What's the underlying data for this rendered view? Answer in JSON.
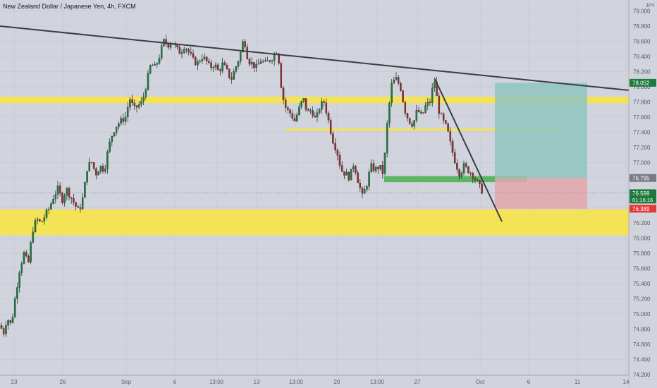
{
  "header": {
    "title": "New Zealand Dollar / Japanese Yen, 4h, FXCM"
  },
  "currency_label": "JPY",
  "colors": {
    "background": "#d1d4dc",
    "candle_up": "#1e7a3c",
    "candle_down": "#9a2b2b",
    "zone_yellow": "#f5e44f",
    "zone_green": "#4caf50",
    "target_fill": "#8fc6c0",
    "stop_fill": "#e3a6ac",
    "trendline": "#3a3d46",
    "badge_green": "#1e7a3c",
    "badge_gray": "#787b86",
    "badge_red": "#e53935"
  },
  "chart_data": {
    "type": "candlestick",
    "title": "New Zealand Dollar / Japanese Yen, 4h, FXCM",
    "y_unit": "JPY",
    "ylim": [
      74.2,
      79.1
    ],
    "y_ticks": [
      "79.000",
      "78.800",
      "78.600",
      "78.400",
      "78.200",
      "78.000",
      "77.800",
      "77.600",
      "77.400",
      "77.200",
      "77.000",
      "76.800",
      "76.600",
      "76.400",
      "76.200",
      "76.000",
      "75.800",
      "75.600",
      "75.400",
      "75.200",
      "75.000",
      "74.800",
      "74.600",
      "74.400",
      "74.200"
    ],
    "x_ticks": [
      "23",
      "26",
      "Sep",
      "6",
      "13:00",
      "13",
      "13:00",
      "20",
      "13:00",
      "27",
      "Oct",
      "6",
      "11",
      "14"
    ],
    "x_tick_positions": [
      20,
      89,
      179,
      248,
      307,
      364,
      420,
      478,
      535,
      592,
      681,
      750,
      819,
      888
    ],
    "price_badges": [
      {
        "label": "78.052",
        "value": 78.052,
        "kind": "target"
      },
      {
        "label": "76.795",
        "value": 76.795,
        "kind": "entry"
      },
      {
        "label": "76.599",
        "sub": "01:16:16",
        "value": 76.599,
        "kind": "current"
      },
      {
        "label": "76.389",
        "value": 76.389,
        "kind": "stop"
      }
    ],
    "current_price": 76.599,
    "zones": [
      {
        "name": "resistance-zone",
        "low": 77.78,
        "high": 77.87,
        "color": "yellow"
      },
      {
        "name": "minor-level",
        "low": 77.42,
        "high": 77.45,
        "color": "yellow"
      },
      {
        "name": "support-zone",
        "low": 76.04,
        "high": 76.38,
        "color": "yellow"
      },
      {
        "name": "entry-level",
        "low": 76.74,
        "high": 76.82,
        "color": "green"
      }
    ],
    "position": {
      "entry": 76.795,
      "target": 78.052,
      "stop": 76.389
    },
    "trendlines": [
      {
        "name": "descending-resistance-trendline"
      },
      {
        "name": "short-term-downtrend-line"
      }
    ],
    "candles_note": "approximate 4h OHLC path",
    "path": [
      [
        0,
        74.85
      ],
      [
        5,
        74.75
      ],
      [
        10,
        74.95
      ],
      [
        16,
        74.85
      ],
      [
        22,
        75.25
      ],
      [
        28,
        75.6
      ],
      [
        34,
        75.8
      ],
      [
        40,
        75.65
      ],
      [
        46,
        76.1
      ],
      [
        52,
        76.25
      ],
      [
        58,
        76.2
      ],
      [
        64,
        76.3
      ],
      [
        70,
        76.4
      ],
      [
        76,
        76.55
      ],
      [
        82,
        76.65
      ],
      [
        88,
        76.5
      ],
      [
        94,
        76.65
      ],
      [
        100,
        76.55
      ],
      [
        106,
        76.45
      ],
      [
        112,
        76.35
      ],
      [
        118,
        76.55
      ],
      [
        124,
        76.95
      ],
      [
        130,
        77.0
      ],
      [
        136,
        76.85
      ],
      [
        142,
        76.95
      ],
      [
        148,
        76.9
      ],
      [
        154,
        77.2
      ],
      [
        160,
        77.4
      ],
      [
        166,
        77.5
      ],
      [
        172,
        77.55
      ],
      [
        178,
        77.6
      ],
      [
        184,
        77.85
      ],
      [
        190,
        77.7
      ],
      [
        196,
        77.75
      ],
      [
        202,
        77.8
      ],
      [
        208,
        78.05
      ],
      [
        214,
        78.3
      ],
      [
        220,
        78.25
      ],
      [
        226,
        78.4
      ],
      [
        232,
        78.6
      ],
      [
        238,
        78.55
      ],
      [
        244,
        78.6
      ],
      [
        250,
        78.5
      ],
      [
        256,
        78.45
      ],
      [
        262,
        78.55
      ],
      [
        268,
        78.45
      ],
      [
        274,
        78.35
      ],
      [
        280,
        78.3
      ],
      [
        286,
        78.4
      ],
      [
        292,
        78.35
      ],
      [
        298,
        78.25
      ],
      [
        304,
        78.3
      ],
      [
        310,
        78.2
      ],
      [
        316,
        78.3
      ],
      [
        322,
        78.2
      ],
      [
        328,
        78.1
      ],
      [
        334,
        78.25
      ],
      [
        340,
        78.4
      ],
      [
        346,
        78.65
      ],
      [
        352,
        78.35
      ],
      [
        358,
        78.3
      ],
      [
        364,
        78.25
      ],
      [
        370,
        78.35
      ],
      [
        376,
        78.3
      ],
      [
        382,
        78.35
      ],
      [
        388,
        78.4
      ],
      [
        394,
        78.5
      ],
      [
        400,
        77.9
      ],
      [
        406,
        77.7
      ],
      [
        412,
        77.65
      ],
      [
        418,
        77.55
      ],
      [
        424,
        77.7
      ],
      [
        430,
        77.85
      ],
      [
        436,
        77.65
      ],
      [
        442,
        77.7
      ],
      [
        448,
        77.55
      ],
      [
        454,
        77.75
      ],
      [
        460,
        77.8
      ],
      [
        466,
        77.55
      ],
      [
        472,
        77.3
      ],
      [
        478,
        77.15
      ],
      [
        484,
        76.9
      ],
      [
        490,
        76.85
      ],
      [
        496,
        76.8
      ],
      [
        502,
        77.0
      ],
      [
        508,
        76.75
      ],
      [
        514,
        76.55
      ],
      [
        520,
        76.7
      ],
      [
        526,
        76.95
      ],
      [
        532,
        76.9
      ],
      [
        538,
        76.95
      ],
      [
        544,
        76.85
      ],
      [
        550,
        77.6
      ],
      [
        556,
        78.05
      ],
      [
        562,
        78.1
      ],
      [
        568,
        78.0
      ],
      [
        574,
        77.7
      ],
      [
        580,
        77.55
      ],
      [
        586,
        77.5
      ],
      [
        592,
        77.7
      ],
      [
        598,
        77.6
      ],
      [
        604,
        77.75
      ],
      [
        610,
        77.8
      ],
      [
        616,
        78.1
      ],
      [
        622,
        77.7
      ],
      [
        628,
        77.55
      ],
      [
        634,
        77.45
      ],
      [
        640,
        77.2
      ],
      [
        646,
        77.0
      ],
      [
        652,
        76.85
      ],
      [
        658,
        76.95
      ],
      [
        664,
        76.9
      ],
      [
        670,
        76.85
      ],
      [
        676,
        76.75
      ],
      [
        682,
        76.65
      ],
      [
        686,
        76.6
      ]
    ]
  }
}
